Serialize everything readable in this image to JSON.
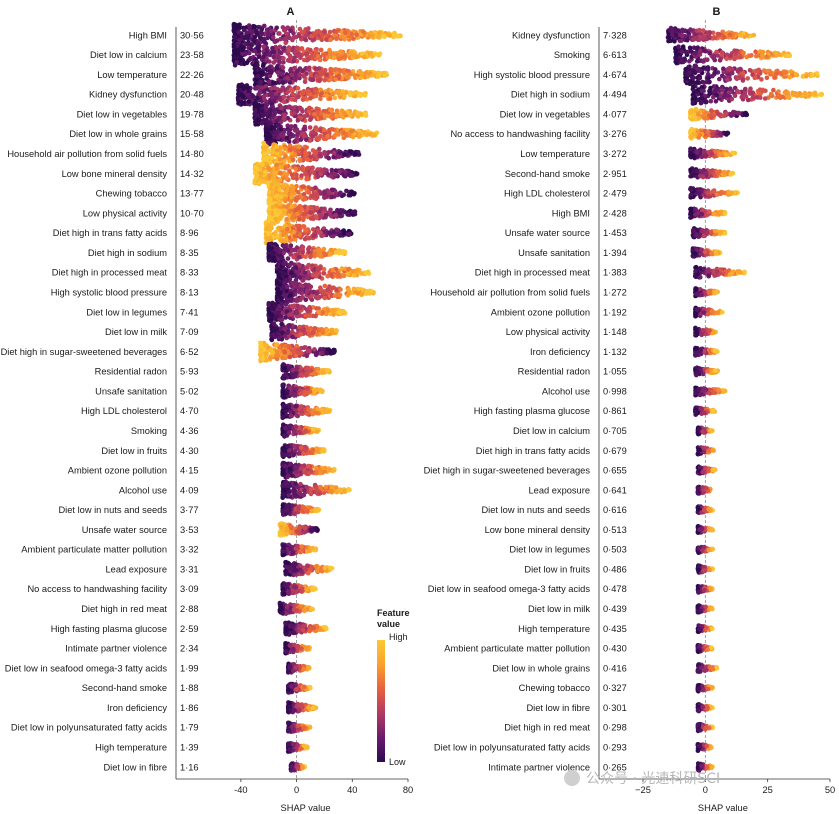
{
  "chart_data": [
    {
      "panel": "A",
      "type": "beeswarm",
      "xlabel": "SHAP value",
      "xlim": [
        -60,
        80
      ],
      "xticks": [
        -40,
        0,
        40,
        80
      ],
      "features": [
        {
          "name": "High BMI",
          "value": "30·56",
          "min": -45,
          "max": 75,
          "corr": 1
        },
        {
          "name": "Diet low in calcium",
          "value": "23·58",
          "min": -45,
          "max": 60,
          "corr": 1
        },
        {
          "name": "Low temperature",
          "value": "22·26",
          "min": -30,
          "max": 65,
          "corr": 1
        },
        {
          "name": "Kidney dysfunction",
          "value": "20·48",
          "min": -42,
          "max": 50,
          "corr": 1
        },
        {
          "name": "Diet low in vegetables",
          "value": "19·78",
          "min": -30,
          "max": 50,
          "corr": 1
        },
        {
          "name": "Diet low in whole grains",
          "value": "15·58",
          "min": -22,
          "max": 58,
          "corr": 1
        },
        {
          "name": "Household air pollution from solid fuels",
          "value": "14·80",
          "min": -24,
          "max": 45,
          "corr": -1
        },
        {
          "name": "Low bone mineral density",
          "value": "14·32",
          "min": -30,
          "max": 45,
          "corr": -1
        },
        {
          "name": "Chewing tobacco",
          "value": "13·77",
          "min": -20,
          "max": 42,
          "corr": -1
        },
        {
          "name": "Low physical activity",
          "value": "10·70",
          "min": -20,
          "max": 42,
          "corr": -1
        },
        {
          "name": "Diet high in trans fatty acids",
          "value": "8·96",
          "min": -22,
          "max": 40,
          "corr": -1
        },
        {
          "name": "Diet high in sodium",
          "value": "8·35",
          "min": -20,
          "max": 35,
          "corr": 1
        },
        {
          "name": "Diet high in processed meat",
          "value": "8·33",
          "min": -14,
          "max": 52,
          "corr": 1
        },
        {
          "name": "High systolic blood pressure",
          "value": "8·13",
          "min": -14,
          "max": 56,
          "corr": 1
        },
        {
          "name": "Diet low in legumes",
          "value": "7·41",
          "min": -20,
          "max": 35,
          "corr": 1
        },
        {
          "name": "Diet low in milk",
          "value": "7·09",
          "min": -18,
          "max": 30,
          "corr": 1
        },
        {
          "name": "Diet high in sugar-sweetened beverages",
          "value": "6·52",
          "min": -26,
          "max": 28,
          "corr": -1
        },
        {
          "name": "Residential radon",
          "value": "5·93",
          "min": -10,
          "max": 24,
          "corr": 1
        },
        {
          "name": "Unsafe sanitation",
          "value": "5·02",
          "min": -10,
          "max": 20,
          "corr": 1
        },
        {
          "name": "High LDL cholesterol",
          "value": "4·70",
          "min": -10,
          "max": 24,
          "corr": 1
        },
        {
          "name": "Smoking",
          "value": "4·36",
          "min": -10,
          "max": 16,
          "corr": 1
        },
        {
          "name": "Diet low in fruits",
          "value": "4·30",
          "min": -10,
          "max": 20,
          "corr": 1
        },
        {
          "name": "Ambient ozone pollution",
          "value": "4·15",
          "min": -10,
          "max": 28,
          "corr": 1
        },
        {
          "name": "Alcohol use",
          "value": "4·09",
          "min": -10,
          "max": 38,
          "corr": 1
        },
        {
          "name": "Diet low in nuts and seeds",
          "value": "3·77",
          "min": -10,
          "max": 16,
          "corr": 1
        },
        {
          "name": "Unsafe water source",
          "value": "3·53",
          "min": -12,
          "max": 16,
          "corr": -1
        },
        {
          "name": "Ambient particulate matter pollution",
          "value": "3·32",
          "min": -10,
          "max": 14,
          "corr": 1
        },
        {
          "name": "Lead exposure",
          "value": "3·31",
          "min": -8,
          "max": 26,
          "corr": 1
        },
        {
          "name": "No access to handwashing facility",
          "value": "3·09",
          "min": -10,
          "max": 14,
          "corr": 1
        },
        {
          "name": "Diet high in red meat",
          "value": "2·88",
          "min": -12,
          "max": 12,
          "corr": 1
        },
        {
          "name": "High fasting plasma glucose",
          "value": "2·59",
          "min": -8,
          "max": 22,
          "corr": 1
        },
        {
          "name": "Intimate partner violence",
          "value": "2·34",
          "min": -8,
          "max": 10,
          "corr": 1
        },
        {
          "name": "Diet low in seafood omega-3 fatty acids",
          "value": "1·99",
          "min": -6,
          "max": 10,
          "corr": 1
        },
        {
          "name": "Second-hand smoke",
          "value": "1·88",
          "min": -6,
          "max": 10,
          "corr": 1
        },
        {
          "name": "Iron deficiency",
          "value": "1·86",
          "min": -6,
          "max": 14,
          "corr": 1
        },
        {
          "name": "Diet low in polyunsaturated fatty acids",
          "value": "1·79",
          "min": -6,
          "max": 10,
          "corr": 1
        },
        {
          "name": "High temperature",
          "value": "1·39",
          "min": -6,
          "max": 8,
          "corr": 1
        },
        {
          "name": "Diet low in fibre",
          "value": "1·16",
          "min": -4,
          "max": 6,
          "corr": 1
        }
      ]
    },
    {
      "panel": "B",
      "type": "beeswarm",
      "xlabel": "SHAP value",
      "xlim": [
        -25,
        50
      ],
      "xticks": [
        -25,
        0,
        25,
        50
      ],
      "xticklabels": [
        "−25",
        "0",
        "25",
        "50"
      ],
      "features": [
        {
          "name": "Kidney dysfunction",
          "value": "7·328",
          "min": -15,
          "max": 20,
          "corr": 1
        },
        {
          "name": "Smoking",
          "value": "6·613",
          "min": -12,
          "max": 35,
          "corr": 1
        },
        {
          "name": "High systolic blood pressure",
          "value": "4·674",
          "min": -8,
          "max": 46,
          "corr": 1
        },
        {
          "name": "Diet high in sodium",
          "value": "4·494",
          "min": -5,
          "max": 47,
          "corr": 1
        },
        {
          "name": "Diet low in vegetables",
          "value": "4·077",
          "min": -6,
          "max": 17,
          "corr": -1
        },
        {
          "name": "No access to handwashing facility",
          "value": "3·276",
          "min": -6,
          "max": 10,
          "corr": -1
        },
        {
          "name": "Low temperature",
          "value": "3·272",
          "min": -6,
          "max": 12,
          "corr": 1
        },
        {
          "name": "Second-hand smoke",
          "value": "2·951",
          "min": -6,
          "max": 12,
          "corr": 1
        },
        {
          "name": "High LDL cholesterol",
          "value": "2·479",
          "min": -6,
          "max": 13,
          "corr": 1
        },
        {
          "name": "High BMI",
          "value": "2·428",
          "min": -6,
          "max": 8,
          "corr": 1
        },
        {
          "name": "Unsafe water source",
          "value": "1·453",
          "min": -5,
          "max": 8,
          "corr": 1
        },
        {
          "name": "Unsafe sanitation",
          "value": "1·394",
          "min": -5,
          "max": 6,
          "corr": 1
        },
        {
          "name": "Diet high in processed meat",
          "value": "1·383",
          "min": -4,
          "max": 16,
          "corr": 1
        },
        {
          "name": "Household air pollution from solid fuels",
          "value": "1·272",
          "min": -4,
          "max": 5,
          "corr": 1
        },
        {
          "name": "Ambient ozone pollution",
          "value": "1·192",
          "min": -4,
          "max": 7,
          "corr": 1
        },
        {
          "name": "Low physical activity",
          "value": "1·148",
          "min": -4,
          "max": 5,
          "corr": 1
        },
        {
          "name": "Iron deficiency",
          "value": "1·132",
          "min": -4,
          "max": 5,
          "corr": 1
        },
        {
          "name": "Residential radon",
          "value": "1·055",
          "min": -4,
          "max": 5,
          "corr": 1
        },
        {
          "name": "Alcohol use",
          "value": "0·998",
          "min": -4,
          "max": 8,
          "corr": 1
        },
        {
          "name": "High fasting plasma glucose",
          "value": "0·861",
          "min": -4,
          "max": 4,
          "corr": 1
        },
        {
          "name": "Diet low in calcium",
          "value": "0·705",
          "min": -3,
          "max": 3,
          "corr": 1
        },
        {
          "name": "Diet high in trans fatty acids",
          "value": "0·679",
          "min": -3,
          "max": 4,
          "corr": 1
        },
        {
          "name": "Diet high in sugar-sweetened beverages",
          "value": "0·655",
          "min": -3,
          "max": 4,
          "corr": 1
        },
        {
          "name": "Lead exposure",
          "value": "0·641",
          "min": -3,
          "max": 3,
          "corr": 1
        },
        {
          "name": "Diet low in nuts and seeds",
          "value": "0·616",
          "min": -3,
          "max": 3,
          "corr": 1
        },
        {
          "name": "Low bone mineral density",
          "value": "0·513",
          "min": -3,
          "max": 3,
          "corr": 1
        },
        {
          "name": "Diet low in legumes",
          "value": "0·503",
          "min": -3,
          "max": 3,
          "corr": 1
        },
        {
          "name": "Diet low in fruits",
          "value": "0·486",
          "min": -3,
          "max": 3,
          "corr": 1
        },
        {
          "name": "Diet low in seafood omega-3 fatty acids",
          "value": "0·478",
          "min": -3,
          "max": 3,
          "corr": 1
        },
        {
          "name": "Diet low in milk",
          "value": "0·439",
          "min": -3,
          "max": 3,
          "corr": 1
        },
        {
          "name": "High temperature",
          "value": "0·435",
          "min": -3,
          "max": 3,
          "corr": 1
        },
        {
          "name": "Ambient particulate matter pollution",
          "value": "0·430",
          "min": -3,
          "max": 3,
          "corr": 1
        },
        {
          "name": "Diet low in whole grains",
          "value": "0·416",
          "min": -3,
          "max": 5,
          "corr": 1
        },
        {
          "name": "Chewing tobacco",
          "value": "0·327",
          "min": -3,
          "max": 3,
          "corr": 1
        },
        {
          "name": "Diet low in fibre",
          "value": "0·301",
          "min": -3,
          "max": 3,
          "corr": 1
        },
        {
          "name": "Diet high in red meat",
          "value": "0·298",
          "min": -3,
          "max": 3,
          "corr": 1
        },
        {
          "name": "Diet low in polyunsaturated fatty acids",
          "value": "0·293",
          "min": -3,
          "max": 3,
          "corr": 1
        },
        {
          "name": "Intimate partner violence",
          "value": "0·265",
          "min": -3,
          "max": 3,
          "corr": 1
        }
      ]
    }
  ],
  "legend": {
    "title_line1": "Feature",
    "title_line2": "value",
    "high": "High",
    "low": "Low",
    "colors": [
      "#2d0a4e",
      "#6a1b6e",
      "#b23a63",
      "#e8603e",
      "#f9a12b",
      "#fbc936"
    ]
  },
  "watermark": "公众号 · 光速科研SCI"
}
